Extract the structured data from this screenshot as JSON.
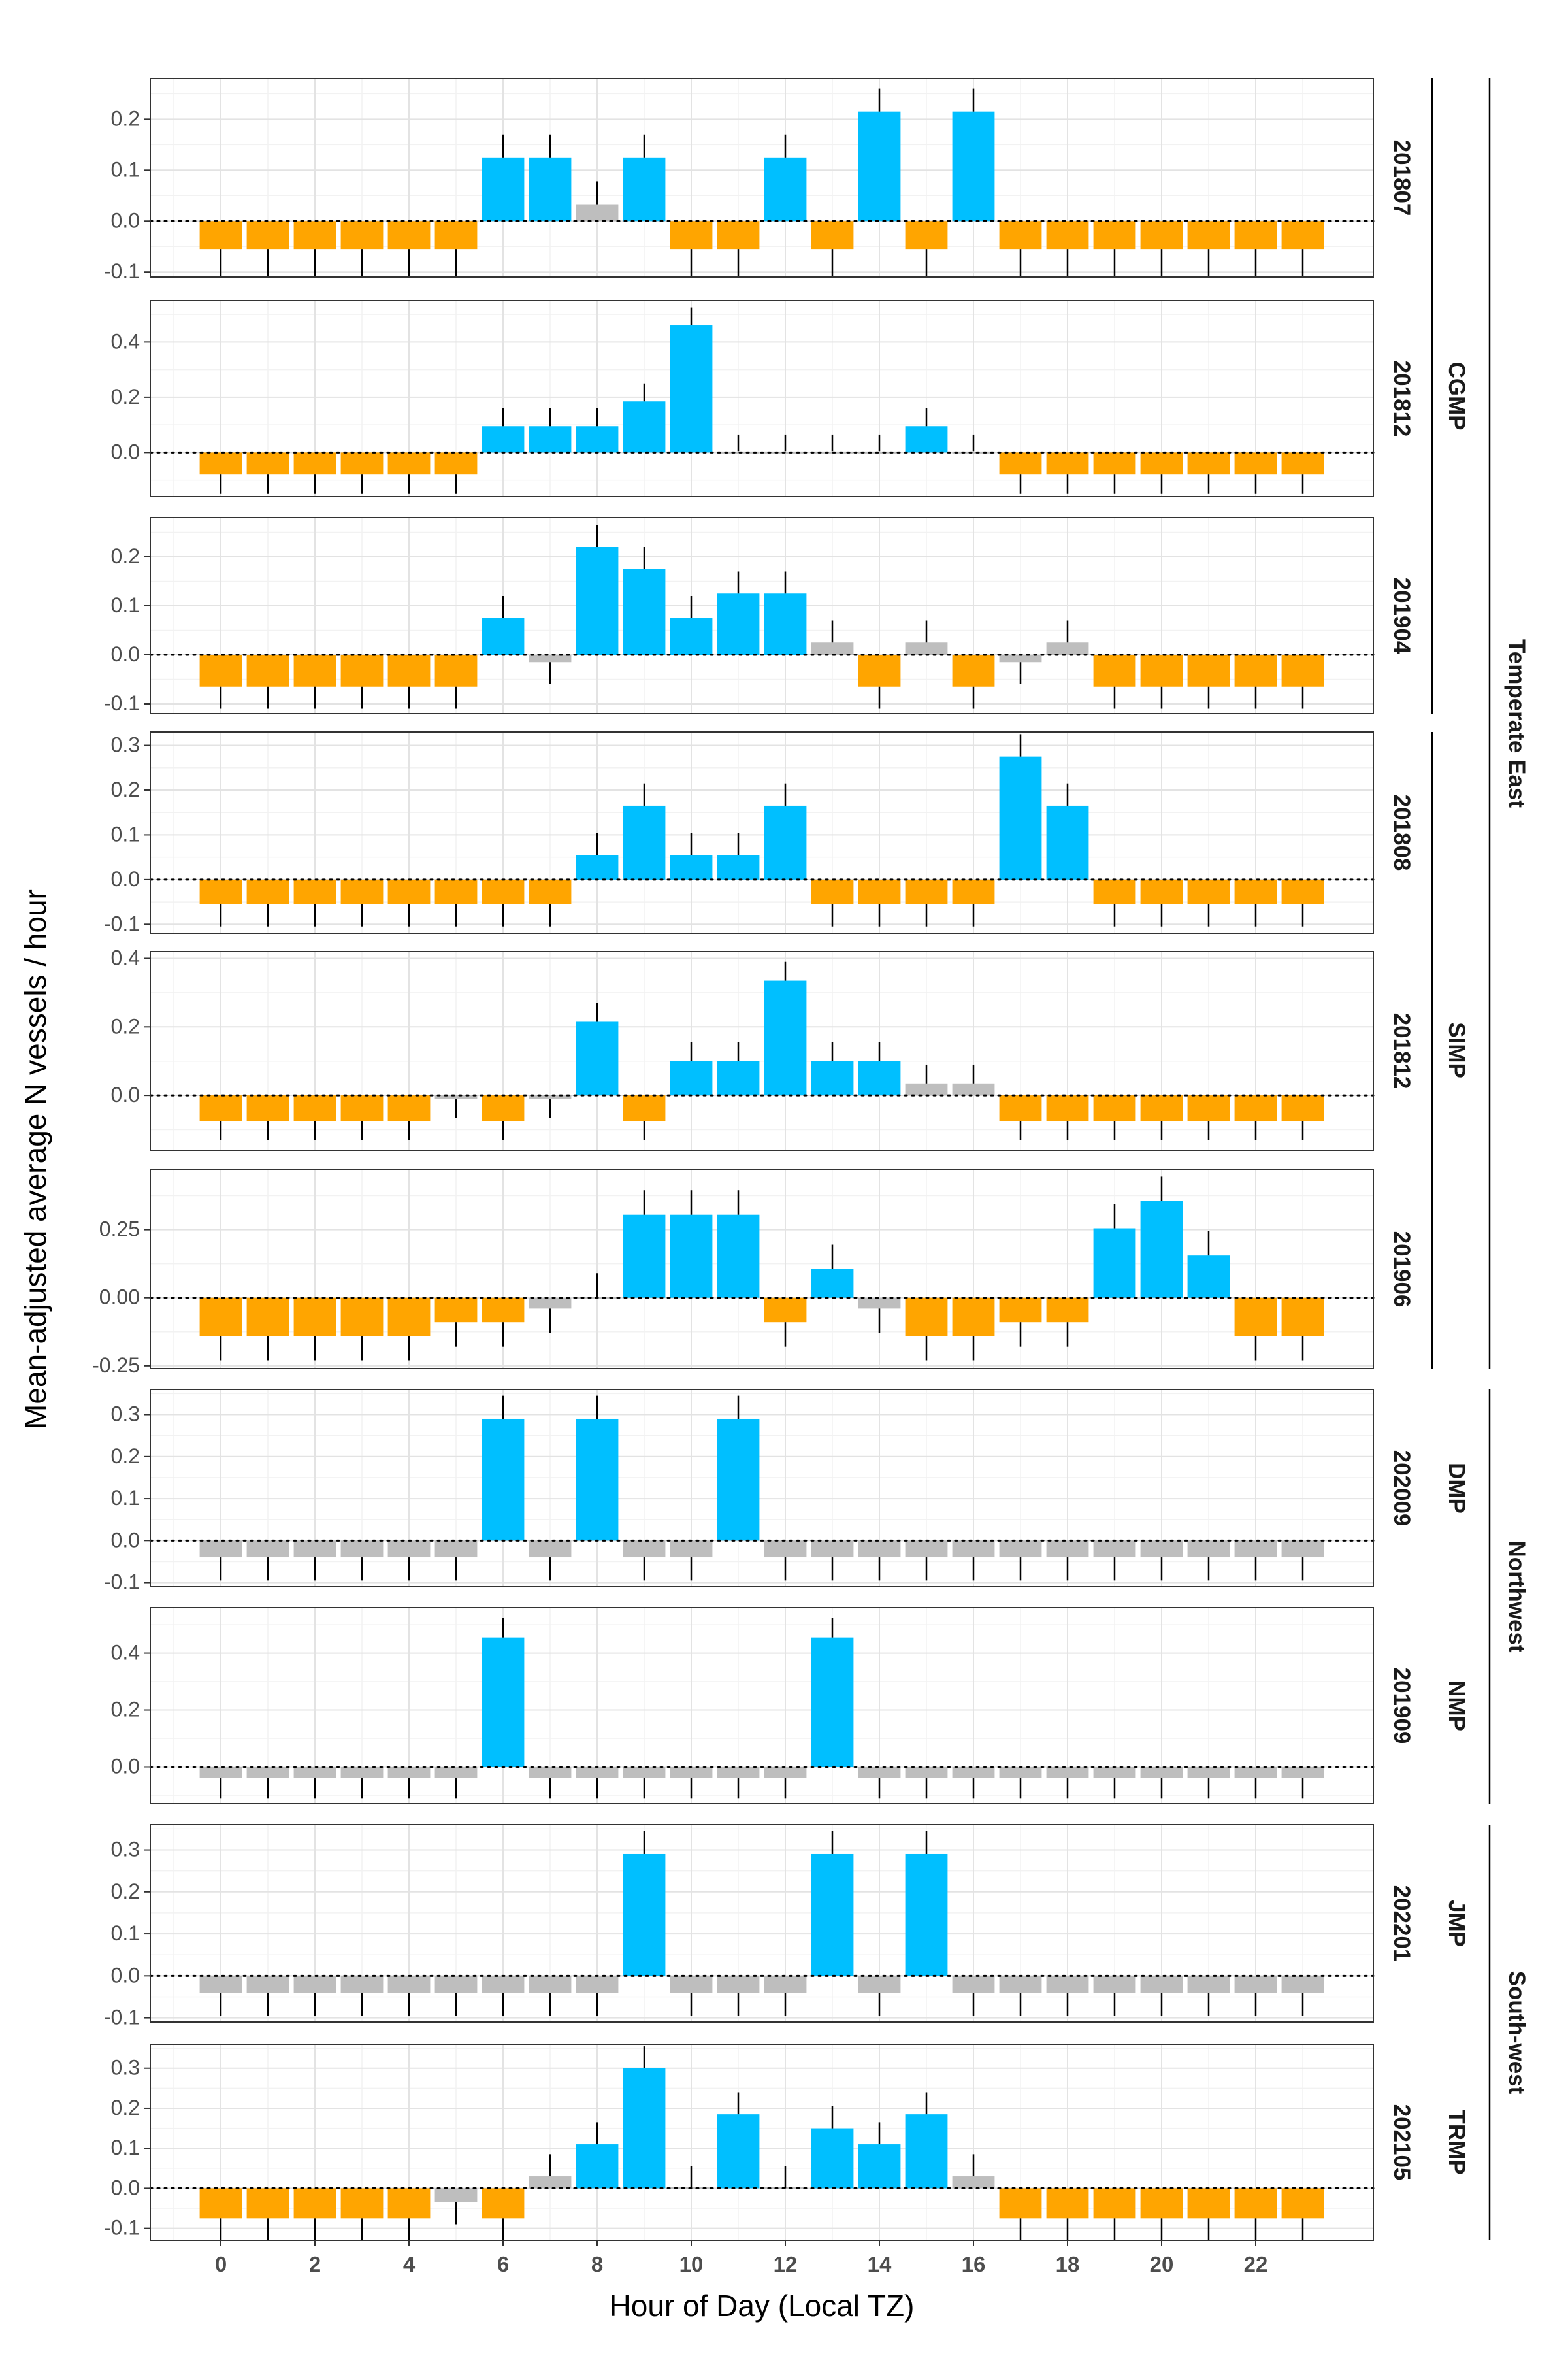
{
  "chart_data": {
    "type": "bar",
    "xlabel": "Hour of Day (Local TZ)",
    "ylabel": "Mean-adjusted average N vessels / hour",
    "x_ticks": [
      "0",
      "2",
      "4",
      "6",
      "8",
      "10",
      "12",
      "14",
      "16",
      "18",
      "20",
      "22"
    ],
    "hours": [
      0,
      1,
      2,
      3,
      4,
      5,
      6,
      7,
      8,
      9,
      10,
      11,
      12,
      13,
      14,
      15,
      16,
      17,
      18,
      19,
      20,
      21,
      22,
      23
    ],
    "colors": {
      "above": "#00BFFF",
      "below": "#FFA500",
      "neutral": "#BEBEBE"
    },
    "regions": [
      "Temperate East",
      "Northwest",
      "South-west"
    ],
    "parks": [
      "CGMP",
      "SIMP",
      "DMP",
      "NMP",
      "JMP",
      "TRMP"
    ],
    "panels": [
      {
        "park": "CGMP",
        "region": "Temperate East",
        "survey": "201807",
        "ylim": [
          -0.11,
          0.28
        ],
        "yticks": [
          -0.1,
          0.0,
          0.1,
          0.2
        ],
        "ytick_labels": [
          "-0.1",
          "0.0",
          "0.1",
          "0.2"
        ],
        "values": [
          -0.055,
          -0.055,
          -0.055,
          -0.055,
          -0.055,
          -0.055,
          0.125,
          0.125,
          0.033,
          0.125,
          -0.055,
          -0.055,
          0.125,
          -0.055,
          0.215,
          -0.055,
          0.215,
          -0.055,
          -0.055,
          -0.055,
          -0.055,
          -0.055,
          -0.055,
          -0.055
        ],
        "errors": [
          0.055,
          0.055,
          0.055,
          0.055,
          0.055,
          0.055,
          0.045,
          0.045,
          0.045,
          0.045,
          0.055,
          0.055,
          0.045,
          0.055,
          0.045,
          0.055,
          0.045,
          0.055,
          0.055,
          0.055,
          0.055,
          0.055,
          0.055,
          0.055
        ],
        "status": [
          "below",
          "below",
          "below",
          "below",
          "below",
          "below",
          "above",
          "above",
          "neutral",
          "above",
          "below",
          "below",
          "above",
          "below",
          "above",
          "below",
          "above",
          "below",
          "below",
          "below",
          "below",
          "below",
          "below",
          "below"
        ]
      },
      {
        "park": "CGMP",
        "region": "Temperate East",
        "survey": "201812",
        "ylim": [
          -0.16,
          0.55
        ],
        "yticks": [
          0.0,
          0.2,
          0.4
        ],
        "ytick_labels": [
          "0.0",
          "0.2",
          "0.4"
        ],
        "values": [
          -0.08,
          -0.08,
          -0.08,
          -0.08,
          -0.08,
          -0.08,
          0.095,
          0.095,
          0.095,
          0.185,
          0.46,
          0.005,
          0.005,
          0.005,
          0.005,
          0.095,
          0.005,
          -0.08,
          -0.08,
          -0.08,
          -0.08,
          -0.08,
          -0.08,
          -0.08
        ],
        "errors": [
          0.07,
          0.07,
          0.07,
          0.07,
          0.07,
          0.07,
          0.065,
          0.065,
          0.065,
          0.065,
          0.065,
          0.06,
          0.06,
          0.06,
          0.06,
          0.065,
          0.06,
          0.07,
          0.07,
          0.07,
          0.07,
          0.07,
          0.07,
          0.07
        ],
        "status": [
          "below",
          "below",
          "below",
          "below",
          "below",
          "below",
          "above",
          "above",
          "above",
          "above",
          "above",
          "neutral",
          "neutral",
          "neutral",
          "neutral",
          "above",
          "neutral",
          "below",
          "below",
          "below",
          "below",
          "below",
          "below",
          "below"
        ]
      },
      {
        "park": "CGMP",
        "region": "Temperate East",
        "survey": "201904",
        "ylim": [
          -0.12,
          0.28
        ],
        "yticks": [
          -0.1,
          0.0,
          0.1,
          0.2
        ],
        "ytick_labels": [
          "-0.1",
          "0.0",
          "0.1",
          "0.2"
        ],
        "values": [
          -0.065,
          -0.065,
          -0.065,
          -0.065,
          -0.065,
          -0.065,
          0.075,
          -0.015,
          0.22,
          0.175,
          0.075,
          0.125,
          0.125,
          0.025,
          -0.065,
          0.025,
          -0.065,
          -0.015,
          0.025,
          -0.065,
          -0.065,
          -0.065,
          -0.065,
          -0.065
        ],
        "errors": [
          0.045,
          0.045,
          0.045,
          0.045,
          0.045,
          0.045,
          0.045,
          0.045,
          0.045,
          0.045,
          0.045,
          0.045,
          0.045,
          0.045,
          0.045,
          0.045,
          0.045,
          0.045,
          0.045,
          0.045,
          0.045,
          0.045,
          0.045,
          0.045
        ],
        "status": [
          "below",
          "below",
          "below",
          "below",
          "below",
          "below",
          "above",
          "neutral",
          "above",
          "above",
          "above",
          "above",
          "above",
          "neutral",
          "below",
          "neutral",
          "below",
          "neutral",
          "neutral",
          "below",
          "below",
          "below",
          "below",
          "below"
        ]
      },
      {
        "park": "SIMP",
        "region": "Temperate East",
        "survey": "201808",
        "ylim": [
          -0.12,
          0.33
        ],
        "yticks": [
          -0.1,
          0.0,
          0.1,
          0.2,
          0.3
        ],
        "ytick_labels": [
          "-0.1",
          "0.0",
          "0.1",
          "0.2",
          "0.3"
        ],
        "values": [
          -0.055,
          -0.055,
          -0.055,
          -0.055,
          -0.055,
          -0.055,
          -0.055,
          -0.055,
          0.055,
          0.165,
          0.055,
          0.055,
          0.165,
          -0.055,
          -0.055,
          -0.055,
          -0.055,
          0.275,
          0.165,
          -0.055,
          -0.055,
          -0.055,
          -0.055,
          -0.055
        ],
        "errors": [
          0.05,
          0.05,
          0.05,
          0.05,
          0.05,
          0.05,
          0.05,
          0.05,
          0.05,
          0.05,
          0.05,
          0.05,
          0.05,
          0.05,
          0.05,
          0.05,
          0.05,
          0.05,
          0.05,
          0.05,
          0.05,
          0.05,
          0.05,
          0.05
        ],
        "status": [
          "below",
          "below",
          "below",
          "below",
          "below",
          "below",
          "below",
          "below",
          "above",
          "above",
          "above",
          "above",
          "above",
          "below",
          "below",
          "below",
          "below",
          "above",
          "above",
          "below",
          "below",
          "below",
          "below",
          "below"
        ]
      },
      {
        "park": "SIMP",
        "region": "Temperate East",
        "survey": "201812",
        "ylim": [
          -0.16,
          0.42
        ],
        "yticks": [
          0.0,
          0.2,
          0.4
        ],
        "ytick_labels": [
          "0.0",
          "0.2",
          "0.4"
        ],
        "values": [
          -0.075,
          -0.075,
          -0.075,
          -0.075,
          -0.075,
          -0.01,
          -0.075,
          -0.01,
          0.215,
          -0.075,
          0.1,
          0.1,
          0.335,
          0.1,
          0.1,
          0.035,
          0.035,
          -0.075,
          -0.075,
          -0.075,
          -0.075,
          -0.075,
          -0.075,
          -0.075
        ],
        "errors": [
          0.055,
          0.055,
          0.055,
          0.055,
          0.055,
          0.055,
          0.055,
          0.055,
          0.055,
          0.055,
          0.055,
          0.055,
          0.055,
          0.055,
          0.055,
          0.055,
          0.055,
          0.055,
          0.055,
          0.055,
          0.055,
          0.055,
          0.055,
          0.055
        ],
        "status": [
          "below",
          "below",
          "below",
          "below",
          "below",
          "neutral",
          "below",
          "neutral",
          "above",
          "below",
          "above",
          "above",
          "above",
          "above",
          "above",
          "neutral",
          "neutral",
          "below",
          "below",
          "below",
          "below",
          "below",
          "below",
          "below"
        ]
      },
      {
        "park": "SIMP",
        "region": "Temperate East",
        "survey": "201906",
        "ylim": [
          -0.26,
          0.47
        ],
        "yticks": [
          -0.25,
          0.0,
          0.25
        ],
        "ytick_labels": [
          "-0.25",
          "0.00",
          "0.25"
        ],
        "values": [
          -0.14,
          -0.14,
          -0.14,
          -0.14,
          -0.14,
          -0.09,
          -0.09,
          -0.04,
          0.0,
          0.305,
          0.305,
          0.305,
          -0.09,
          0.105,
          -0.04,
          -0.14,
          -0.14,
          -0.09,
          -0.09,
          0.255,
          0.355,
          0.155,
          -0.14,
          -0.14
        ],
        "errors": [
          0.09,
          0.09,
          0.09,
          0.09,
          0.09,
          0.09,
          0.09,
          0.09,
          0.09,
          0.09,
          0.09,
          0.09,
          0.09,
          0.09,
          0.09,
          0.09,
          0.09,
          0.09,
          0.09,
          0.09,
          0.09,
          0.09,
          0.09,
          0.09
        ],
        "status": [
          "below",
          "below",
          "below",
          "below",
          "below",
          "below",
          "below",
          "neutral",
          "neutral",
          "above",
          "above",
          "above",
          "below",
          "above",
          "neutral",
          "below",
          "below",
          "below",
          "below",
          "above",
          "above",
          "above",
          "below",
          "below"
        ]
      },
      {
        "park": "DMP",
        "region": "Northwest",
        "survey": "202009",
        "ylim": [
          -0.11,
          0.36
        ],
        "yticks": [
          -0.1,
          0.0,
          0.1,
          0.2,
          0.3
        ],
        "ytick_labels": [
          "-0.1",
          "0.0",
          "0.1",
          "0.2",
          "0.3"
        ],
        "values": [
          -0.04,
          -0.04,
          -0.04,
          -0.04,
          -0.04,
          -0.04,
          0.29,
          -0.04,
          0.29,
          -0.04,
          -0.04,
          0.29,
          -0.04,
          -0.04,
          -0.04,
          -0.04,
          -0.04,
          -0.04,
          -0.04,
          -0.04,
          -0.04,
          -0.04,
          -0.04,
          -0.04
        ],
        "errors": [
          0.055,
          0.055,
          0.055,
          0.055,
          0.055,
          0.055,
          0.055,
          0.055,
          0.055,
          0.055,
          0.055,
          0.055,
          0.055,
          0.055,
          0.055,
          0.055,
          0.055,
          0.055,
          0.055,
          0.055,
          0.055,
          0.055,
          0.055,
          0.055
        ],
        "status": [
          "neutral",
          "neutral",
          "neutral",
          "neutral",
          "neutral",
          "neutral",
          "above",
          "neutral",
          "above",
          "neutral",
          "neutral",
          "above",
          "neutral",
          "neutral",
          "neutral",
          "neutral",
          "neutral",
          "neutral",
          "neutral",
          "neutral",
          "neutral",
          "neutral",
          "neutral",
          "neutral"
        ]
      },
      {
        "park": "NMP",
        "region": "Northwest",
        "survey": "201909",
        "ylim": [
          -0.13,
          0.56
        ],
        "yticks": [
          0.0,
          0.2,
          0.4
        ],
        "ytick_labels": [
          "0.0",
          "0.2",
          "0.4"
        ],
        "values": [
          -0.04,
          -0.04,
          -0.04,
          -0.04,
          -0.04,
          -0.04,
          0.455,
          -0.04,
          -0.04,
          -0.04,
          -0.04,
          -0.04,
          -0.04,
          0.455,
          -0.04,
          -0.04,
          -0.04,
          -0.04,
          -0.04,
          -0.04,
          -0.04,
          -0.04,
          -0.04,
          -0.04
        ],
        "errors": [
          0.07,
          0.07,
          0.07,
          0.07,
          0.07,
          0.07,
          0.07,
          0.07,
          0.07,
          0.07,
          0.07,
          0.07,
          0.07,
          0.07,
          0.07,
          0.07,
          0.07,
          0.07,
          0.07,
          0.07,
          0.07,
          0.07,
          0.07,
          0.07
        ],
        "status": [
          "neutral",
          "neutral",
          "neutral",
          "neutral",
          "neutral",
          "neutral",
          "above",
          "neutral",
          "neutral",
          "neutral",
          "neutral",
          "neutral",
          "neutral",
          "above",
          "neutral",
          "neutral",
          "neutral",
          "neutral",
          "neutral",
          "neutral",
          "neutral",
          "neutral",
          "neutral",
          "neutral"
        ]
      },
      {
        "park": "JMP",
        "region": "South-west",
        "survey": "202201",
        "ylim": [
          -0.11,
          0.36
        ],
        "yticks": [
          -0.1,
          0.0,
          0.1,
          0.2,
          0.3
        ],
        "ytick_labels": [
          "-0.1",
          "0.0",
          "0.1",
          "0.2",
          "0.3"
        ],
        "values": [
          -0.04,
          -0.04,
          -0.04,
          -0.04,
          -0.04,
          -0.04,
          -0.04,
          -0.04,
          -0.04,
          0.29,
          -0.04,
          -0.04,
          -0.04,
          0.29,
          -0.04,
          0.29,
          -0.04,
          -0.04,
          -0.04,
          -0.04,
          -0.04,
          -0.04,
          -0.04,
          -0.04
        ],
        "errors": [
          0.055,
          0.055,
          0.055,
          0.055,
          0.055,
          0.055,
          0.055,
          0.055,
          0.055,
          0.055,
          0.055,
          0.055,
          0.055,
          0.055,
          0.055,
          0.055,
          0.055,
          0.055,
          0.055,
          0.055,
          0.055,
          0.055,
          0.055,
          0.055
        ],
        "status": [
          "neutral",
          "neutral",
          "neutral",
          "neutral",
          "neutral",
          "neutral",
          "neutral",
          "neutral",
          "neutral",
          "above",
          "neutral",
          "neutral",
          "neutral",
          "above",
          "neutral",
          "above",
          "neutral",
          "neutral",
          "neutral",
          "neutral",
          "neutral",
          "neutral",
          "neutral",
          "neutral"
        ]
      },
      {
        "park": "TRMP",
        "region": "South-west",
        "survey": "202105",
        "ylim": [
          -0.13,
          0.36
        ],
        "yticks": [
          -0.1,
          0.0,
          0.1,
          0.2,
          0.3
        ],
        "ytick_labels": [
          "-0.1",
          "0.0",
          "0.1",
          "0.2",
          "0.3"
        ],
        "values": [
          -0.075,
          -0.075,
          -0.075,
          -0.075,
          -0.075,
          -0.035,
          -0.075,
          0.03,
          0.11,
          0.3,
          0.0,
          0.185,
          0.0,
          0.15,
          0.11,
          0.185,
          0.03,
          -0.075,
          -0.075,
          -0.075,
          -0.075,
          -0.075,
          -0.075,
          -0.075
        ],
        "errors": [
          0.055,
          0.055,
          0.055,
          0.055,
          0.055,
          0.055,
          0.055,
          0.055,
          0.055,
          0.055,
          0.055,
          0.055,
          0.055,
          0.055,
          0.055,
          0.055,
          0.055,
          0.055,
          0.055,
          0.055,
          0.055,
          0.055,
          0.055,
          0.055
        ],
        "status": [
          "below",
          "below",
          "below",
          "below",
          "below",
          "neutral",
          "below",
          "neutral",
          "above",
          "above",
          "neutral",
          "above",
          "neutral",
          "above",
          "above",
          "above",
          "neutral",
          "below",
          "below",
          "below",
          "below",
          "below",
          "below",
          "below"
        ]
      }
    ]
  }
}
